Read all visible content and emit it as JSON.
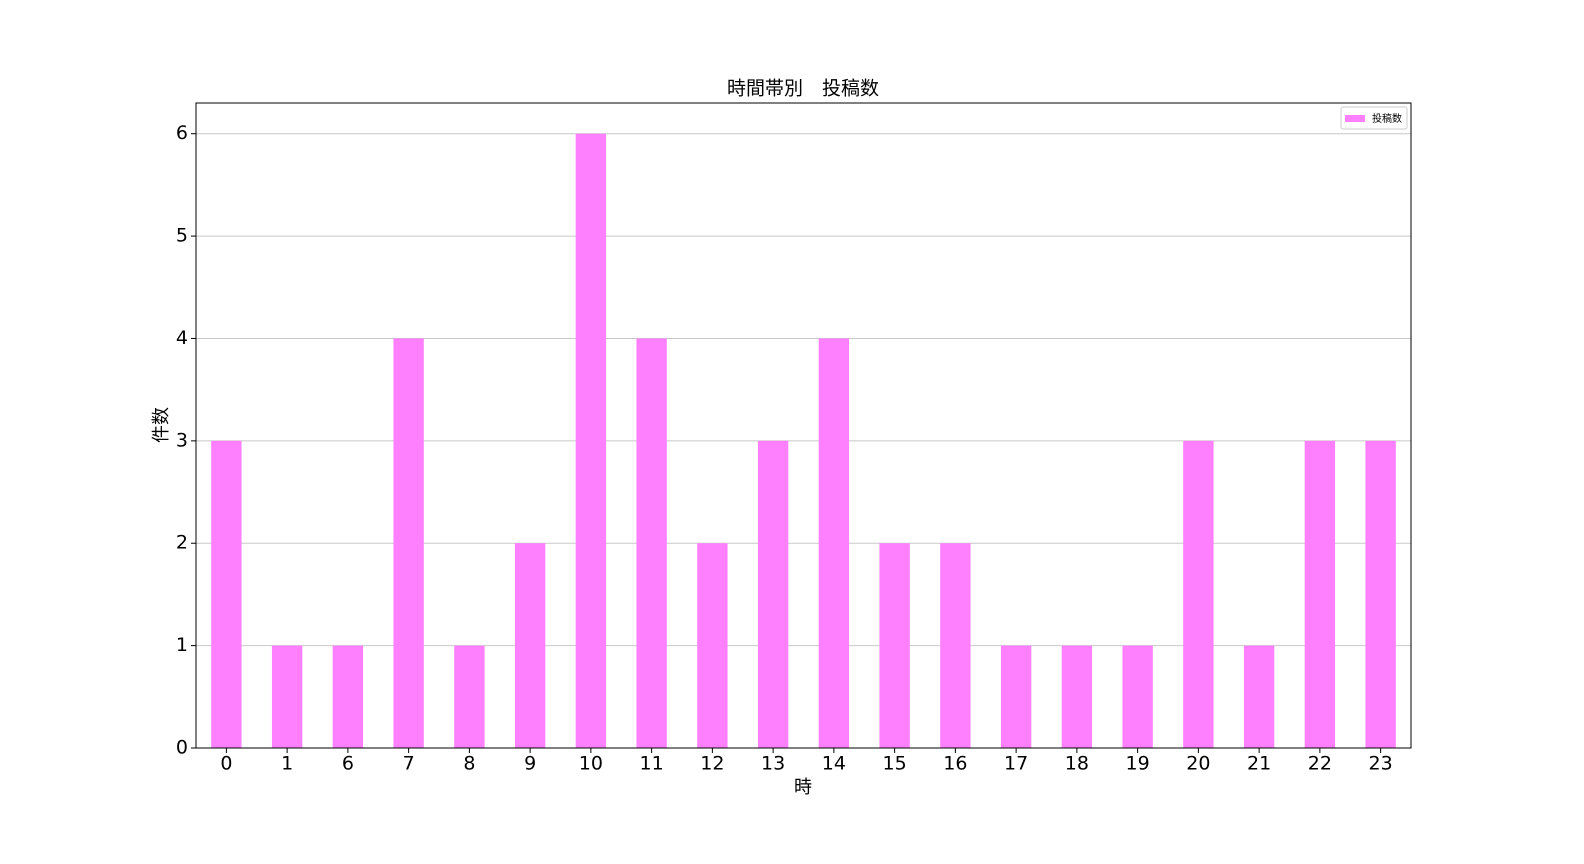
{
  "chart_data": {
    "type": "bar",
    "title": "時間帯別　投稿数",
    "x_label": "時",
    "y_label": "件数",
    "categories": [
      "0",
      "1",
      "6",
      "7",
      "8",
      "9",
      "10",
      "11",
      "12",
      "13",
      "14",
      "15",
      "16",
      "17",
      "18",
      "19",
      "20",
      "21",
      "22",
      "23"
    ],
    "series": [
      {
        "name": "投稿数",
        "color": "#ff80ff",
        "values": [
          3,
          1,
          1,
          4,
          1,
          2,
          6,
          4,
          2,
          3,
          4,
          2,
          2,
          1,
          1,
          1,
          3,
          1,
          3,
          3
        ]
      }
    ],
    "ylim": [
      0,
      6.3
    ],
    "yticks": [
      0,
      1,
      2,
      3,
      4,
      5,
      6
    ],
    "grid": true,
    "legend": "upper right"
  }
}
